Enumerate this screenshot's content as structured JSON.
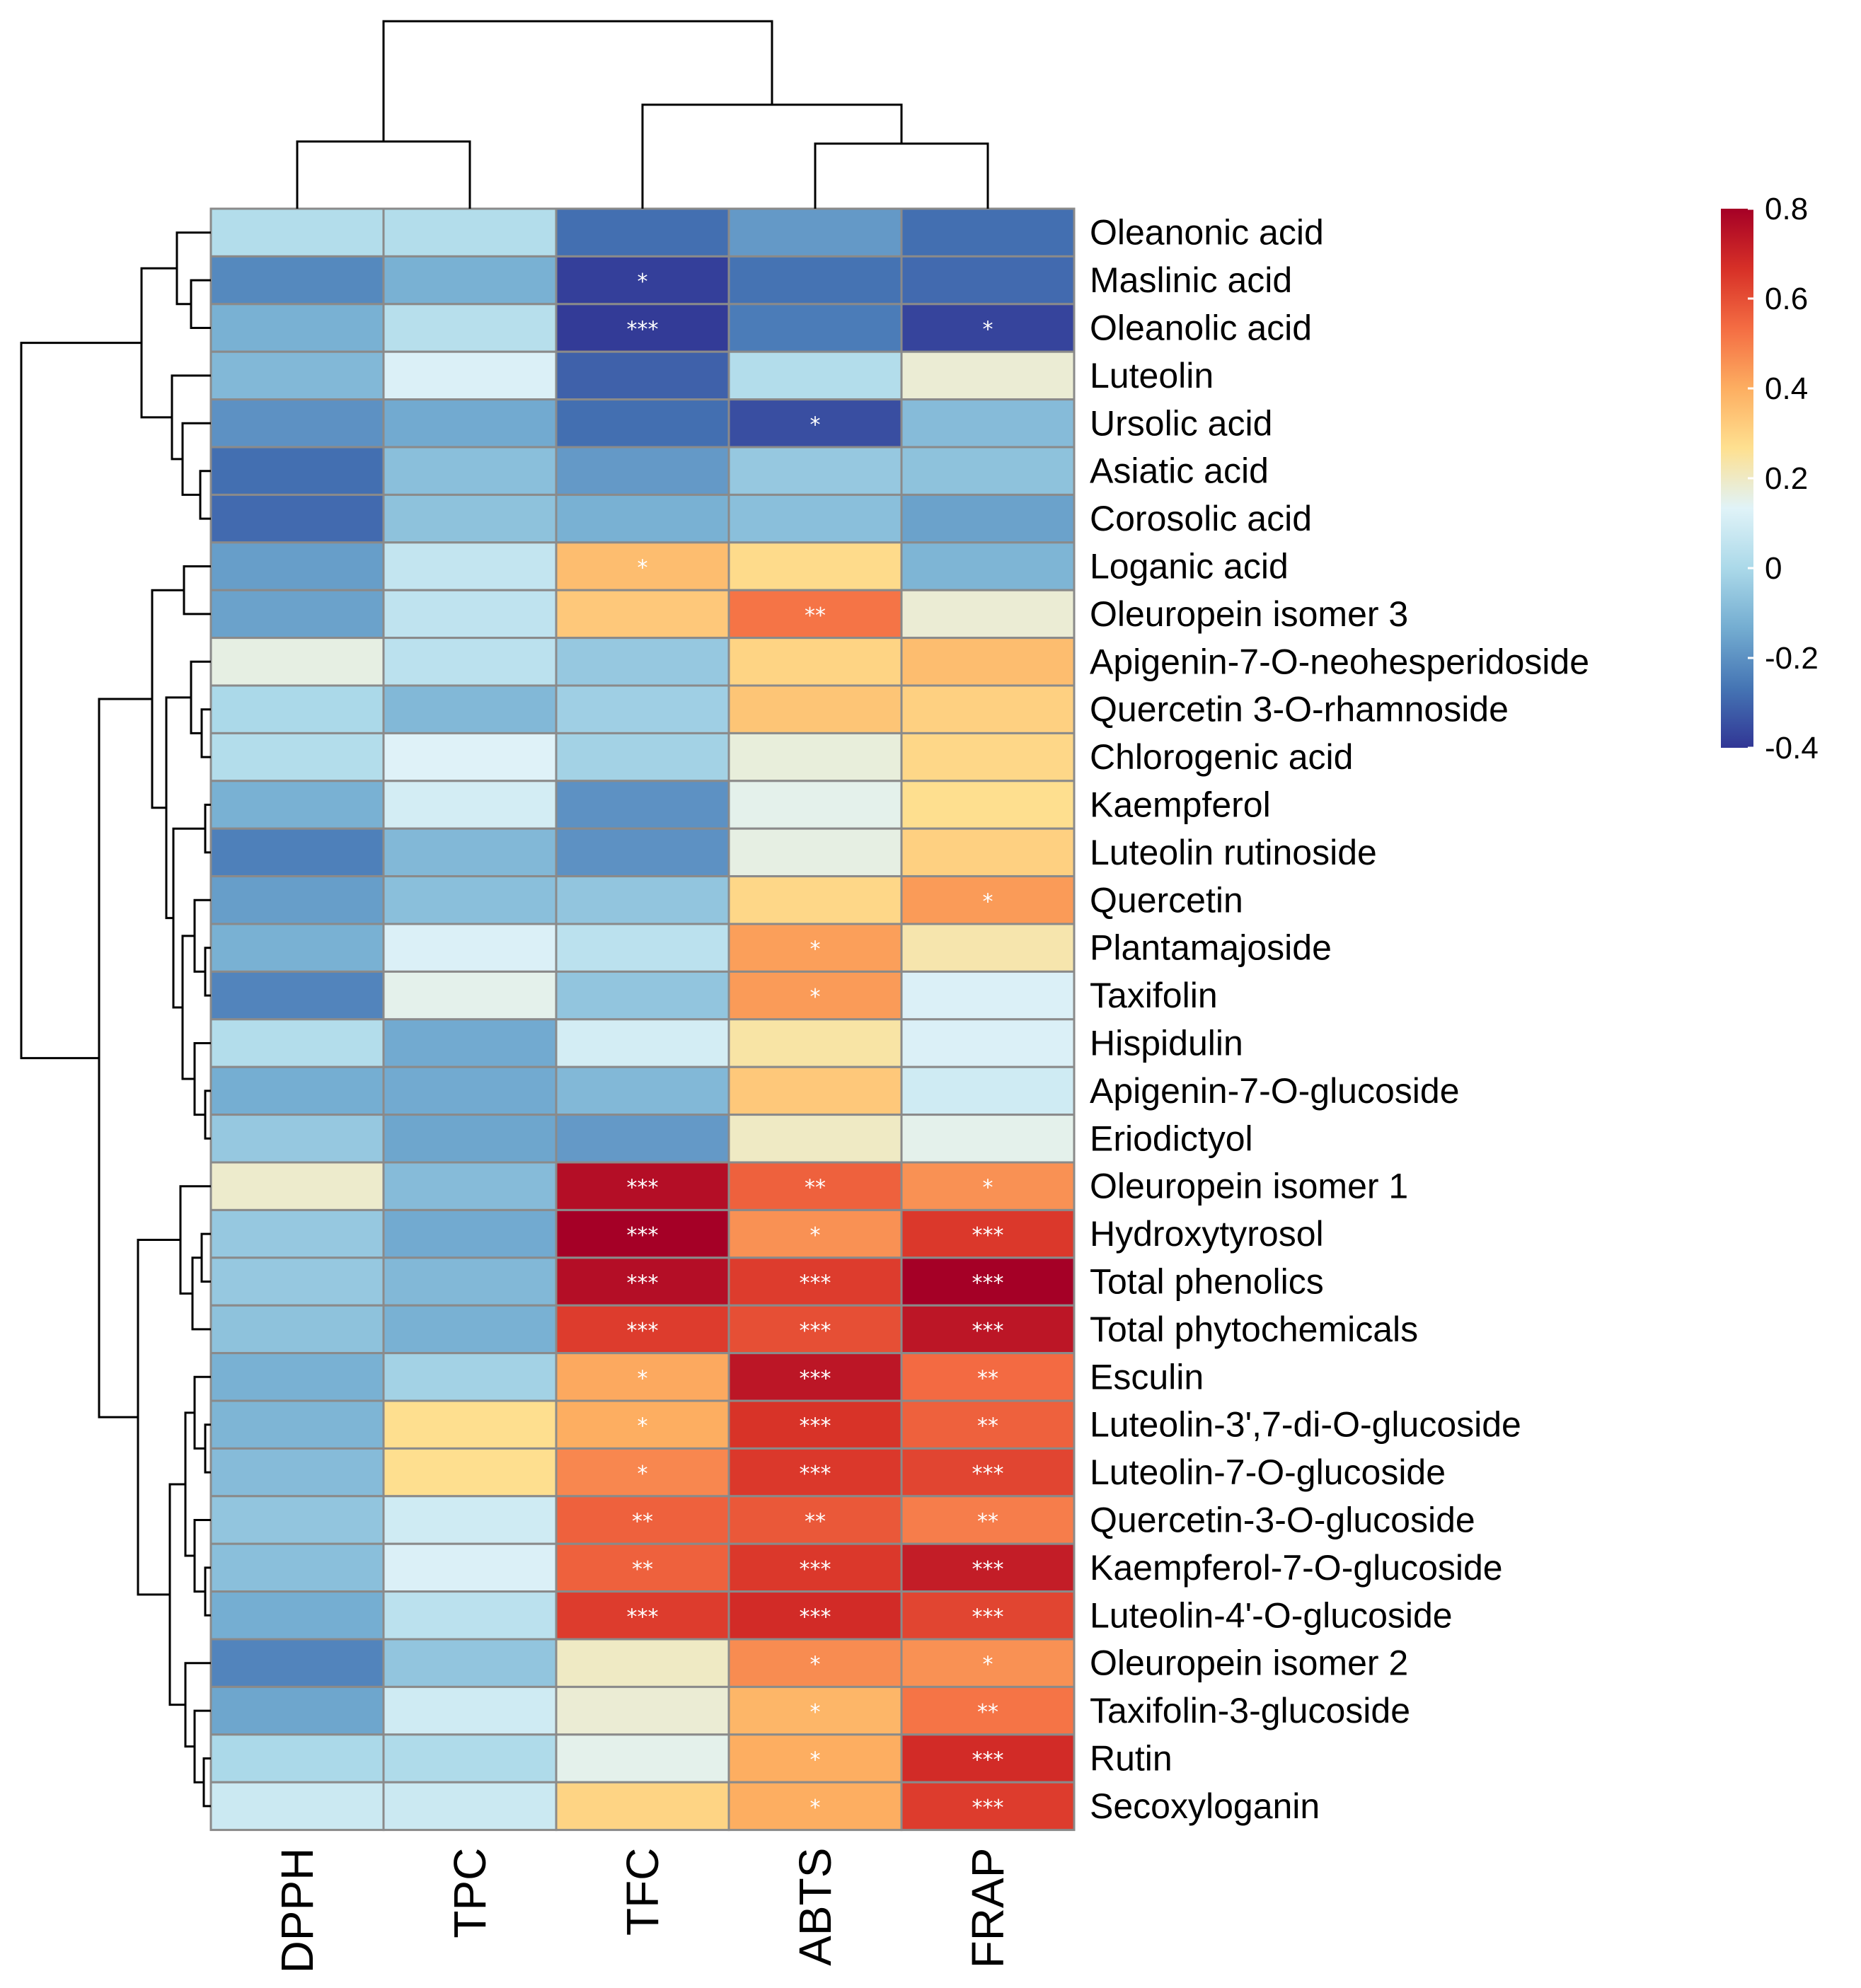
{
  "chart_data": {
    "type": "heatmap",
    "columns": [
      "DPPH",
      "TPC",
      "TFC",
      "ABTS",
      "FRAP"
    ],
    "rows": [
      "Oleanonic acid",
      "Maslinic acid",
      "Oleanolic acid",
      "Luteolin",
      "Ursolic acid",
      "Asiatic acid",
      "Corosolic acid",
      "Loganic acid",
      "Oleuropein isomer 3",
      "Apigenin-7-O-neohesperidoside",
      "Quercetin 3-O-rhamnoside",
      "Chlorogenic acid",
      "Kaempferol",
      "Luteolin rutinoside",
      "Quercetin",
      "Plantamajoside",
      "Taxifolin",
      "Hispidulin",
      "Apigenin-7-O-glucoside",
      "Eriodictyol",
      "Oleuropein isomer 1",
      "Hydroxytyrosol",
      "Total phenolics",
      "Total phytochemicals",
      "Esculin",
      "Luteolin-3',7-di-O-glucoside",
      "Luteolin-7-O-glucoside",
      "Quercetin-3-O-glucoside",
      "Kaempferol-7-O-glucoside",
      "Luteolin-4'-O-glucoside",
      "Oleuropein isomer 2",
      "Taxifolin-3-glucoside",
      "Rutin",
      "Secoxyloganin"
    ],
    "values": [
      [
        0.02,
        0.02,
        -0.28,
        -0.18,
        -0.28
      ],
      [
        -0.22,
        -0.12,
        -0.38,
        -0.27,
        -0.29
      ],
      [
        -0.12,
        0.03,
        -0.39,
        -0.25,
        -0.37
      ],
      [
        -0.1,
        0.12,
        -0.31,
        0.02,
        0.18
      ],
      [
        -0.2,
        -0.14,
        -0.28,
        -0.35,
        -0.09
      ],
      [
        -0.28,
        -0.08,
        -0.18,
        -0.05,
        -0.07
      ],
      [
        -0.29,
        -0.07,
        -0.12,
        -0.08,
        -0.16
      ],
      [
        -0.17,
        0.06,
        0.36,
        0.28,
        -0.11
      ],
      [
        -0.16,
        0.05,
        0.33,
        0.52,
        0.18
      ],
      [
        0.16,
        0.04,
        -0.05,
        0.3,
        0.36
      ],
      [
        0.0,
        -0.1,
        -0.03,
        0.34,
        0.31
      ],
      [
        0.02,
        0.13,
        -0.02,
        0.17,
        0.29
      ],
      [
        -0.12,
        0.1,
        -0.2,
        0.15,
        0.27
      ],
      [
        -0.24,
        -0.1,
        -0.2,
        0.16,
        0.31
      ],
      [
        -0.17,
        -0.08,
        -0.06,
        0.29,
        0.44
      ],
      [
        -0.12,
        0.12,
        0.04,
        0.43,
        0.23
      ],
      [
        -0.23,
        0.15,
        -0.06,
        0.44,
        0.12
      ],
      [
        0.02,
        -0.14,
        0.1,
        0.24,
        0.12
      ],
      [
        -0.13,
        -0.14,
        -0.1,
        0.33,
        0.09
      ],
      [
        -0.05,
        -0.15,
        -0.18,
        0.2,
        0.15
      ],
      [
        0.19,
        -0.09,
        0.76,
        0.56,
        0.46
      ],
      [
        -0.05,
        -0.14,
        0.8,
        0.46,
        0.65
      ],
      [
        -0.05,
        -0.1,
        0.76,
        0.64,
        0.8
      ],
      [
        -0.07,
        -0.12,
        0.64,
        0.6,
        0.74
      ],
      [
        -0.12,
        -0.02,
        0.41,
        0.74,
        0.54
      ],
      [
        -0.11,
        0.27,
        0.4,
        0.66,
        0.56
      ],
      [
        -0.09,
        0.27,
        0.48,
        0.65,
        0.62
      ],
      [
        -0.06,
        0.09,
        0.56,
        0.58,
        0.5
      ],
      [
        -0.08,
        0.12,
        0.56,
        0.65,
        0.72
      ],
      [
        -0.13,
        0.04,
        0.64,
        0.68,
        0.62
      ],
      [
        -0.23,
        -0.06,
        0.2,
        0.47,
        0.46
      ],
      [
        -0.15,
        0.09,
        0.18,
        0.38,
        0.52
      ],
      [
        0.0,
        0.01,
        0.15,
        0.4,
        0.68
      ],
      [
        0.08,
        0.08,
        0.3,
        0.4,
        0.64
      ]
    ],
    "significance": [
      [
        "",
        "",
        "",
        "",
        ""
      ],
      [
        "",
        "",
        "*",
        "",
        ""
      ],
      [
        "",
        "",
        "***",
        "",
        "*"
      ],
      [
        "",
        "",
        "",
        "",
        ""
      ],
      [
        "",
        "",
        "",
        "*",
        ""
      ],
      [
        "",
        "",
        "",
        "",
        ""
      ],
      [
        "",
        "",
        "",
        "",
        ""
      ],
      [
        "",
        "",
        "*",
        "",
        ""
      ],
      [
        "",
        "",
        "",
        "**",
        ""
      ],
      [
        "",
        "",
        "",
        "",
        ""
      ],
      [
        "",
        "",
        "",
        "",
        ""
      ],
      [
        "",
        "",
        "",
        "",
        ""
      ],
      [
        "",
        "",
        "",
        "",
        ""
      ],
      [
        "",
        "",
        "",
        "",
        ""
      ],
      [
        "",
        "",
        "",
        "",
        "*"
      ],
      [
        "",
        "",
        "",
        "*",
        ""
      ],
      [
        "",
        "",
        "",
        "*",
        ""
      ],
      [
        "",
        "",
        "",
        "",
        ""
      ],
      [
        "",
        "",
        "",
        "",
        ""
      ],
      [
        "",
        "",
        "",
        "",
        ""
      ],
      [
        "",
        "",
        "***",
        "**",
        "*"
      ],
      [
        "",
        "",
        "***",
        "*",
        "***"
      ],
      [
        "",
        "",
        "***",
        "***",
        "***"
      ],
      [
        "",
        "",
        "***",
        "***",
        "***"
      ],
      [
        "",
        "",
        "*",
        "***",
        "**"
      ],
      [
        "",
        "",
        "*",
        "***",
        "**"
      ],
      [
        "",
        "",
        "*",
        "***",
        "***"
      ],
      [
        "",
        "",
        "**",
        "**",
        "**"
      ],
      [
        "",
        "",
        "**",
        "***",
        "***"
      ],
      [
        "",
        "",
        "***",
        "***",
        "***"
      ],
      [
        "",
        "",
        "",
        "*",
        "*"
      ],
      [
        "",
        "",
        "",
        "*",
        "**"
      ],
      [
        "",
        "",
        "",
        "*",
        "***"
      ],
      [
        "",
        "",
        "",
        "*",
        "***"
      ]
    ],
    "color_scale": {
      "min": -0.4,
      "max": 0.8,
      "ticks": [
        "0.8",
        "0.6",
        "0.4",
        "0.2",
        "0",
        "-0.2",
        "-0.4"
      ],
      "colors": [
        "#313695",
        "#4575b4",
        "#74add1",
        "#abd9e9",
        "#e0f3f8",
        "#fee090",
        "#fdae61",
        "#f46d43",
        "#d73027",
        "#a50026"
      ]
    },
    "title": "",
    "legend": "right"
  }
}
